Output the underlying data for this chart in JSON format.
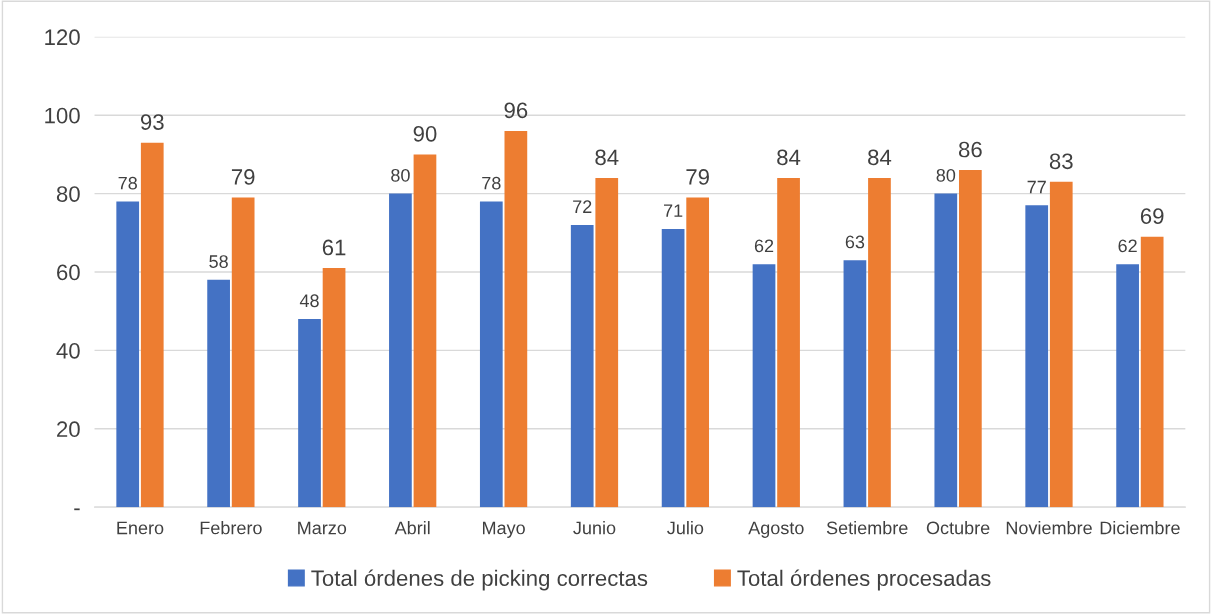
{
  "chart_data": {
    "type": "bar",
    "categories": [
      "Enero",
      "Febrero",
      "Marzo",
      "Abril",
      "Mayo",
      "Junio",
      "Julio",
      "Agosto",
      "Setiembre",
      "Octubre",
      "Noviembre",
      "Diciembre"
    ],
    "series": [
      {
        "name": "Total órdenes de picking correctas",
        "color": "#4472c4",
        "values": [
          78,
          58,
          48,
          80,
          78,
          72,
          71,
          62,
          63,
          80,
          77,
          62
        ]
      },
      {
        "name": "Total órdenes procesadas",
        "color": "#ed7d31",
        "values": [
          93,
          79,
          61,
          90,
          96,
          84,
          79,
          84,
          84,
          86,
          83,
          69
        ]
      }
    ],
    "ylim": [
      0,
      120
    ],
    "yticks": [
      {
        "value": 0,
        "label": "-"
      },
      20,
      40,
      60,
      80,
      100,
      120
    ],
    "grid": "y",
    "legend": "bottom",
    "data_labels": true
  }
}
